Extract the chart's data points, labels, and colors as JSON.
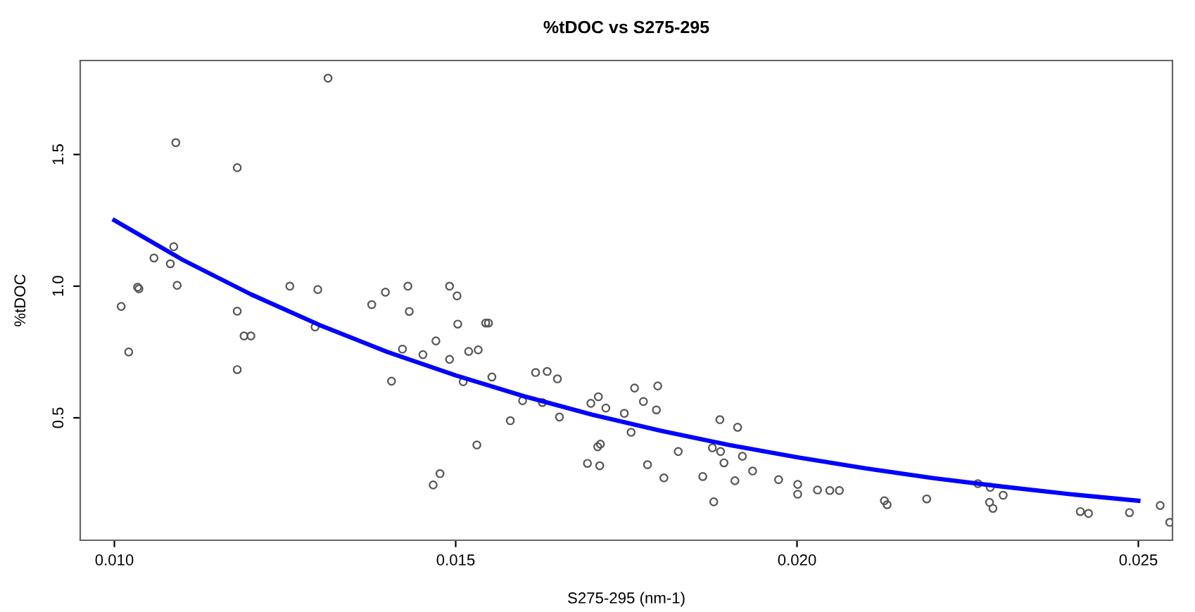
{
  "chart_data": {
    "type": "scatter",
    "title": "%tDOC vs S275-295",
    "xlabel": "S275-295 (nm-1)",
    "ylabel": "%tDOC",
    "xlim": [
      0.0095,
      0.0255
    ],
    "ylim": [
      0.035,
      1.857
    ],
    "xticks": [
      {
        "value": 0.01,
        "label": "0.010"
      },
      {
        "value": 0.015,
        "label": "0.015"
      },
      {
        "value": 0.02,
        "label": "0.020"
      },
      {
        "value": 0.025,
        "label": "0.025"
      }
    ],
    "yticks": [
      {
        "value": 0.5,
        "label": "0.5"
      },
      {
        "value": 1.0,
        "label": "1.0"
      },
      {
        "value": 1.5,
        "label": "1.5"
      }
    ],
    "grid": false,
    "legend": false,
    "series": [
      {
        "marker": "circle",
        "color": "#555555",
        "x": [
          0.01313,
          0.0109,
          0.0118,
          0.01087,
          0.01058,
          0.01082,
          0.01034,
          0.01036,
          0.01092,
          0.0101,
          0.01021,
          0.0118,
          0.0119,
          0.012,
          0.0118,
          0.01257,
          0.01298,
          0.01294,
          0.01377,
          0.01397,
          0.0143,
          0.01432,
          0.01422,
          0.01452,
          0.01406,
          0.01471,
          0.01467,
          0.01477,
          0.01491,
          0.01502,
          0.01503,
          0.01491,
          0.01519,
          0.01533,
          0.01544,
          0.01548,
          0.01511,
          0.01553,
          0.01531,
          0.0158,
          0.01598,
          0.01617,
          0.01634,
          0.01627,
          0.01649,
          0.01652,
          0.01698,
          0.01709,
          0.0172,
          0.01693,
          0.01711,
          0.01708,
          0.01712,
          0.01747,
          0.01757,
          0.01762,
          0.01775,
          0.01796,
          0.01794,
          0.01781,
          0.01805,
          0.01826,
          0.01862,
          0.01876,
          0.01887,
          0.01888,
          0.01893,
          0.01878,
          0.01913,
          0.0192,
          0.01909,
          0.01935,
          0.01973,
          0.02001,
          0.02001,
          0.0203,
          0.02048,
          0.02062,
          0.02128,
          0.02132,
          0.0219,
          0.02265,
          0.02283,
          0.02282,
          0.02287,
          0.02302,
          0.02415,
          0.02427,
          0.02487,
          0.02532,
          0.02546
        ],
        "values": [
          1.79,
          1.545,
          1.45,
          1.15,
          1.107,
          1.085,
          0.996,
          0.99,
          1.003,
          0.923,
          0.75,
          0.905,
          0.811,
          0.811,
          0.683,
          1.0,
          0.987,
          0.845,
          0.93,
          0.977,
          1.0,
          0.904,
          0.761,
          0.74,
          0.639,
          0.792,
          0.245,
          0.288,
          1.0,
          0.963,
          0.856,
          0.722,
          0.752,
          0.758,
          0.86,
          0.86,
          0.637,
          0.655,
          0.397,
          0.489,
          0.565,
          0.672,
          0.676,
          0.558,
          0.648,
          0.503,
          0.555,
          0.58,
          0.537,
          0.327,
          0.318,
          0.39,
          0.4,
          0.517,
          0.445,
          0.613,
          0.562,
          0.621,
          0.53,
          0.322,
          0.272,
          0.372,
          0.277,
          0.386,
          0.493,
          0.372,
          0.329,
          0.181,
          0.464,
          0.354,
          0.261,
          0.298,
          0.265,
          0.247,
          0.21,
          0.226,
          0.224,
          0.224,
          0.185,
          0.17,
          0.192,
          0.25,
          0.236,
          0.179,
          0.156,
          0.206,
          0.144,
          0.137,
          0.14,
          0.167,
          0.103
        ]
      },
      {
        "type": "line",
        "marker": "none",
        "line_style": "solid",
        "color": "#0000ff",
        "x": [
          0.01,
          0.011,
          0.012,
          0.013,
          0.014,
          0.015,
          0.016,
          0.017,
          0.018,
          0.019,
          0.02,
          0.021,
          0.022,
          0.023,
          0.024,
          0.025
        ],
        "values": [
          1.25,
          1.1,
          0.969,
          0.853,
          0.75,
          0.661,
          0.582,
          0.512,
          0.451,
          0.397,
          0.35,
          0.308,
          0.271,
          0.239,
          0.21,
          0.185
        ]
      }
    ]
  }
}
